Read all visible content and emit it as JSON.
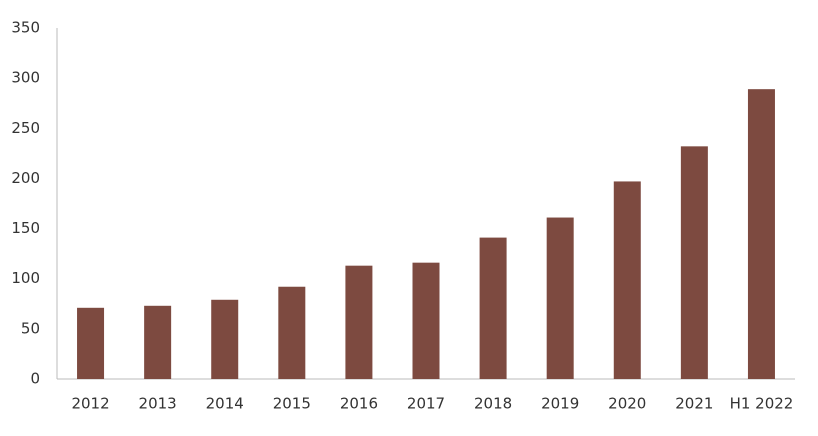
{
  "chart_data": {
    "type": "bar",
    "categories": [
      "2012",
      "2013",
      "2014",
      "2015",
      "2016",
      "2017",
      "2018",
      "2019",
      "2020",
      "2021",
      "H1 2022"
    ],
    "values": [
      71,
      73,
      79,
      92,
      113,
      116,
      141,
      161,
      197,
      232,
      289
    ],
    "color": "#7d4a40",
    "ylim": [
      0,
      350
    ],
    "yticks": [
      0,
      50,
      100,
      150,
      200,
      250,
      300,
      350
    ],
    "grid": false
  }
}
